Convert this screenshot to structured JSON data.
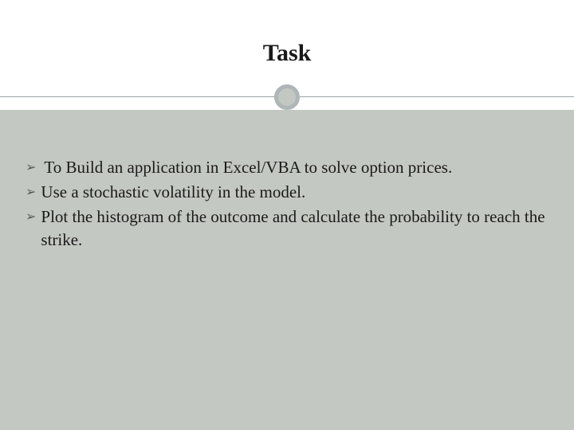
{
  "slide": {
    "title": "Task",
    "title_fontsize": 30,
    "title_color": "#1a1a1a",
    "header_bg": "#ffffff",
    "body_bg": "#c4c8c2",
    "divider_color": "#9ba5a8",
    "circle_border_color": "#aeb6b8",
    "circle_border_width": 5,
    "bullets": [
      {
        "text": "To Build an application in Excel/VBA to solve option prices."
      },
      {
        "text": "Use a stochastic volatility in the model."
      },
      {
        "text": "Plot the histogram of the outcome and  calculate the probability to reach the strike."
      }
    ],
    "bullet_marker": "➢",
    "bullet_fontsize": 21,
    "bullet_color": "#1a1a1a",
    "bullet_marker_color": "#5a5a5a"
  }
}
